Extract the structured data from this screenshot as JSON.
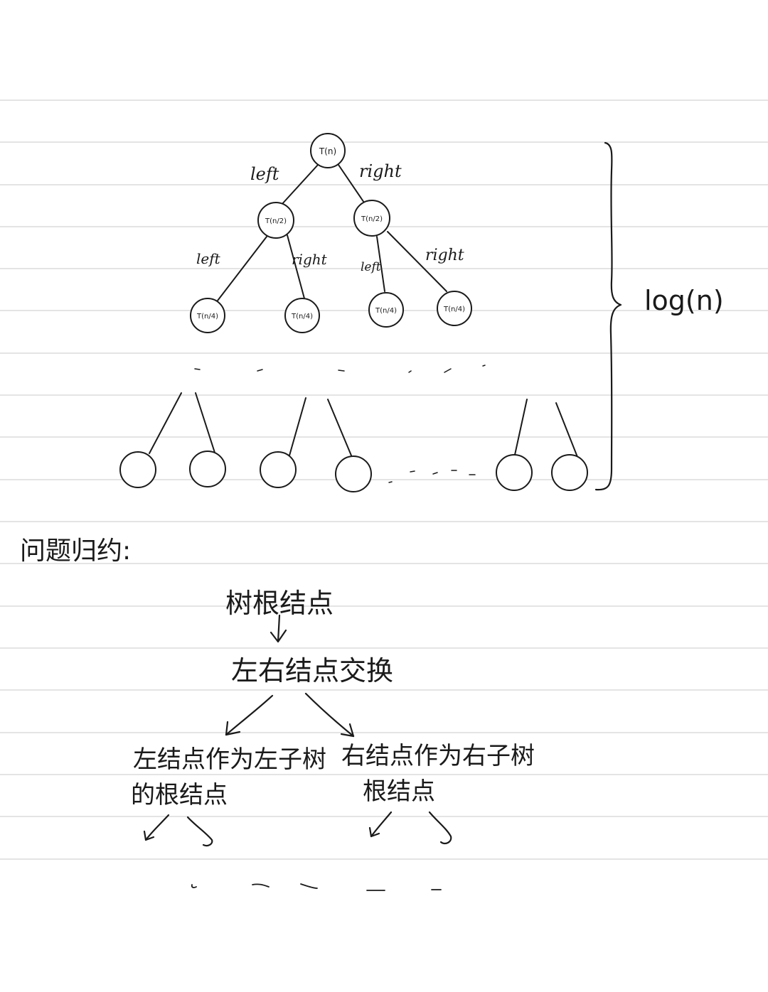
{
  "tree": {
    "root": {
      "label": "T(n)"
    },
    "level1": [
      {
        "label": "T(n/2)"
      },
      {
        "label": "T(n/2)"
      }
    ],
    "level2": [
      {
        "label": "T(n/4)"
      },
      {
        "label": "T(n/4)"
      },
      {
        "label": "T(n/4)"
      },
      {
        "label": "T(n/4)"
      }
    ],
    "edge_labels": {
      "root_left": "left",
      "root_right": "right",
      "l1a_left": "left",
      "l1a_right": "right",
      "l1b_left": "left",
      "l1b_right": "right"
    },
    "height_label": "log(n)"
  },
  "reduction": {
    "heading": "问题归约:",
    "step1": "树根结点",
    "step2": "左右结点交换",
    "left_branch_line1": "左结点作为左子树",
    "left_branch_line2": "的根结点",
    "right_branch_line1": "右结点作为右子树",
    "right_branch_line2": "根结点"
  }
}
